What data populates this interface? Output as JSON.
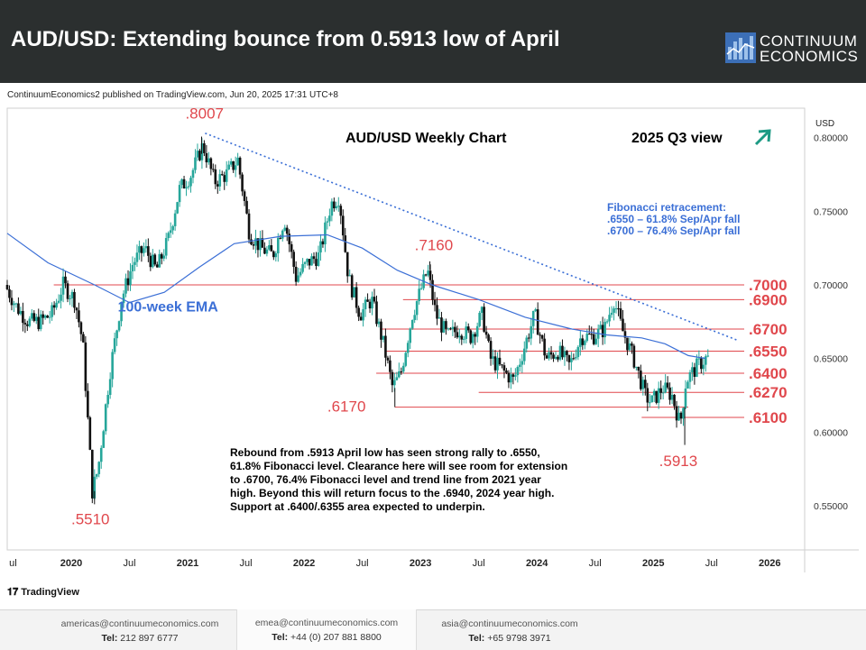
{
  "header": {
    "title": "AUD/USD: Extending bounce from 0.5913 low of April",
    "brand_line1": "CONTINUUM",
    "brand_line2": "ECONOMICS"
  },
  "published": "ContinuumEconomics2 published on TradingView.com, Jun 20, 2025 17:31 UTC+8",
  "tradingview_label": "TradingView",
  "footer": [
    {
      "email": "americas@continuumeconomics.com",
      "tel_label": "Tel:",
      "tel": "212 897 6777"
    },
    {
      "email": "emea@continuumeconomics.com",
      "tel_label": "Tel:",
      "tel": "+44 (0) 207 881 8800"
    },
    {
      "email": "asia@continuumeconomics.com",
      "tel_label": "Tel:",
      "tel": "+65 9798 3971"
    }
  ],
  "chart_data": {
    "type": "candlestick",
    "title": "AUD/USD Weekly Chart",
    "view_label": "2025 Q3 view",
    "currency_label": "USD",
    "y_range": [
      0.52,
      0.82
    ],
    "x_range": [
      2019.45,
      2026.3
    ],
    "y_ticks": [
      "0.80000",
      "0.75000",
      "0.70000",
      "0.65000",
      "0.60000",
      "0.55000"
    ],
    "x_ticks": [
      {
        "t": 2019.5,
        "label": "ul"
      },
      {
        "t": 2020.0,
        "label": "2020"
      },
      {
        "t": 2020.5,
        "label": "Jul"
      },
      {
        "t": 2021.0,
        "label": "2021"
      },
      {
        "t": 2021.5,
        "label": "Jul"
      },
      {
        "t": 2022.0,
        "label": "2022"
      },
      {
        "t": 2022.5,
        "label": "Jul"
      },
      {
        "t": 2023.0,
        "label": "2023"
      },
      {
        "t": 2023.5,
        "label": "Jul"
      },
      {
        "t": 2024.0,
        "label": "2024"
      },
      {
        "t": 2024.5,
        "label": "Jul"
      },
      {
        "t": 2025.0,
        "label": "2025"
      },
      {
        "t": 2025.5,
        "label": "Jul"
      },
      {
        "t": 2026.0,
        "label": "2026"
      }
    ],
    "price_path": [
      [
        2019.45,
        0.7
      ],
      [
        2019.55,
        0.685
      ],
      [
        2019.65,
        0.675
      ],
      [
        2019.75,
        0.675
      ],
      [
        2019.85,
        0.68
      ],
      [
        2019.95,
        0.7
      ],
      [
        2020.05,
        0.69
      ],
      [
        2020.12,
        0.66
      ],
      [
        2020.2,
        0.56
      ],
      [
        2020.25,
        0.575
      ],
      [
        2020.35,
        0.64
      ],
      [
        2020.45,
        0.69
      ],
      [
        2020.55,
        0.715
      ],
      [
        2020.65,
        0.725
      ],
      [
        2020.75,
        0.71
      ],
      [
        2020.85,
        0.73
      ],
      [
        2020.95,
        0.765
      ],
      [
        2021.05,
        0.775
      ],
      [
        2021.15,
        0.795
      ],
      [
        2021.25,
        0.77
      ],
      [
        2021.35,
        0.775
      ],
      [
        2021.45,
        0.785
      ],
      [
        2021.55,
        0.735
      ],
      [
        2021.65,
        0.725
      ],
      [
        2021.75,
        0.72
      ],
      [
        2021.85,
        0.745
      ],
      [
        2021.95,
        0.705
      ],
      [
        2022.05,
        0.715
      ],
      [
        2022.15,
        0.72
      ],
      [
        2022.25,
        0.755
      ],
      [
        2022.32,
        0.76
      ],
      [
        2022.4,
        0.705
      ],
      [
        2022.5,
        0.68
      ],
      [
        2022.6,
        0.69
      ],
      [
        2022.7,
        0.66
      ],
      [
        2022.78,
        0.63
      ],
      [
        2022.85,
        0.64
      ],
      [
        2022.95,
        0.68
      ],
      [
        2023.08,
        0.71
      ],
      [
        2023.15,
        0.68
      ],
      [
        2023.25,
        0.665
      ],
      [
        2023.35,
        0.67
      ],
      [
        2023.45,
        0.665
      ],
      [
        2023.55,
        0.68
      ],
      [
        2023.62,
        0.65
      ],
      [
        2023.75,
        0.64
      ],
      [
        2023.82,
        0.635
      ],
      [
        2023.92,
        0.66
      ],
      [
        2024.0,
        0.68
      ],
      [
        2024.1,
        0.65
      ],
      [
        2024.2,
        0.655
      ],
      [
        2024.3,
        0.645
      ],
      [
        2024.4,
        0.665
      ],
      [
        2024.5,
        0.665
      ],
      [
        2024.6,
        0.67
      ],
      [
        2024.68,
        0.69
      ],
      [
        2024.75,
        0.67
      ],
      [
        2024.85,
        0.65
      ],
      [
        2024.95,
        0.625
      ],
      [
        2025.0,
        0.62
      ],
      [
        2025.1,
        0.63
      ],
      [
        2025.18,
        0.625
      ],
      [
        2025.25,
        0.605
      ],
      [
        2025.3,
        0.635
      ],
      [
        2025.4,
        0.645
      ],
      [
        2025.47,
        0.65
      ]
    ],
    "ema_100week": [
      [
        2019.45,
        0.735
      ],
      [
        2019.8,
        0.715
      ],
      [
        2020.2,
        0.7
      ],
      [
        2020.5,
        0.688
      ],
      [
        2020.8,
        0.695
      ],
      [
        2021.1,
        0.712
      ],
      [
        2021.4,
        0.728
      ],
      [
        2021.8,
        0.733
      ],
      [
        2022.2,
        0.734
      ],
      [
        2022.5,
        0.725
      ],
      [
        2022.8,
        0.71
      ],
      [
        2023.1,
        0.7
      ],
      [
        2023.5,
        0.69
      ],
      [
        2023.9,
        0.678
      ],
      [
        2024.3,
        0.67
      ],
      [
        2024.6,
        0.666
      ],
      [
        2024.9,
        0.664
      ],
      [
        2025.1,
        0.66
      ],
      [
        2025.3,
        0.652
      ],
      [
        2025.45,
        0.65
      ]
    ],
    "ema_label": "100-week EMA",
    "trendline": {
      "from": [
        2021.15,
        0.803
      ],
      "to": [
        2025.72,
        0.6625
      ]
    },
    "levels": [
      {
        "label": ".7000",
        "value": 0.7,
        "from": 2019.85
      },
      {
        "label": ".6900",
        "value": 0.69,
        "from": 2022.85
      },
      {
        "label": ".6700",
        "value": 0.67,
        "from": 2022.65
      },
      {
        "label": ".6550",
        "value": 0.655,
        "from": 2022.7
      },
      {
        "label": ".6400",
        "value": 0.64,
        "from": 2022.62
      },
      {
        "label": ".6270",
        "value": 0.627,
        "from": 2023.5
      },
      {
        "label": ".6100",
        "value": 0.61,
        "from": 2024.9
      }
    ],
    "level_6170": {
      "value": 0.617,
      "from": 2022.78,
      "to": 2025.3
    },
    "annotations": [
      {
        "label": ".8007",
        "t": 2020.98,
        "v": 0.813
      },
      {
        "label": ".5510",
        "t": 2020.0,
        "v": 0.5375
      },
      {
        "label": ".7160",
        "t": 2022.95,
        "v": 0.7235
      },
      {
        "label": ".6170",
        "t": 2022.2,
        "v": 0.614
      },
      {
        "label": ".5913",
        "t": 2025.05,
        "v": 0.577
      }
    ],
    "fibonacci_text": [
      "Fibonacci retracement:",
      ".6550 – 61.8% Sep/Apr fall",
      ".6700 – 76.4% Sep/Apr fall"
    ],
    "commentary": [
      "Rebound from .5913 April low has seen strong rally to .6550,",
      "61.8% Fibonacci level. Clearance here will see room for extension",
      "to .6700, 76.4% Fibonacci level and trend line from 2021 year",
      "high. Beyond this will return focus to the .6940, 2024 year high.",
      "Support at .6400/.6355 area expected to underpin."
    ],
    "colors": {
      "up": "#26a69a",
      "down": "#111111",
      "ema": "#3b6fd6",
      "trend": "#3b6fd6",
      "level": "#e0474c",
      "label_red": "#e0474c",
      "ema_text": "#3b6fd6",
      "arrow": "#1d9a84"
    }
  }
}
